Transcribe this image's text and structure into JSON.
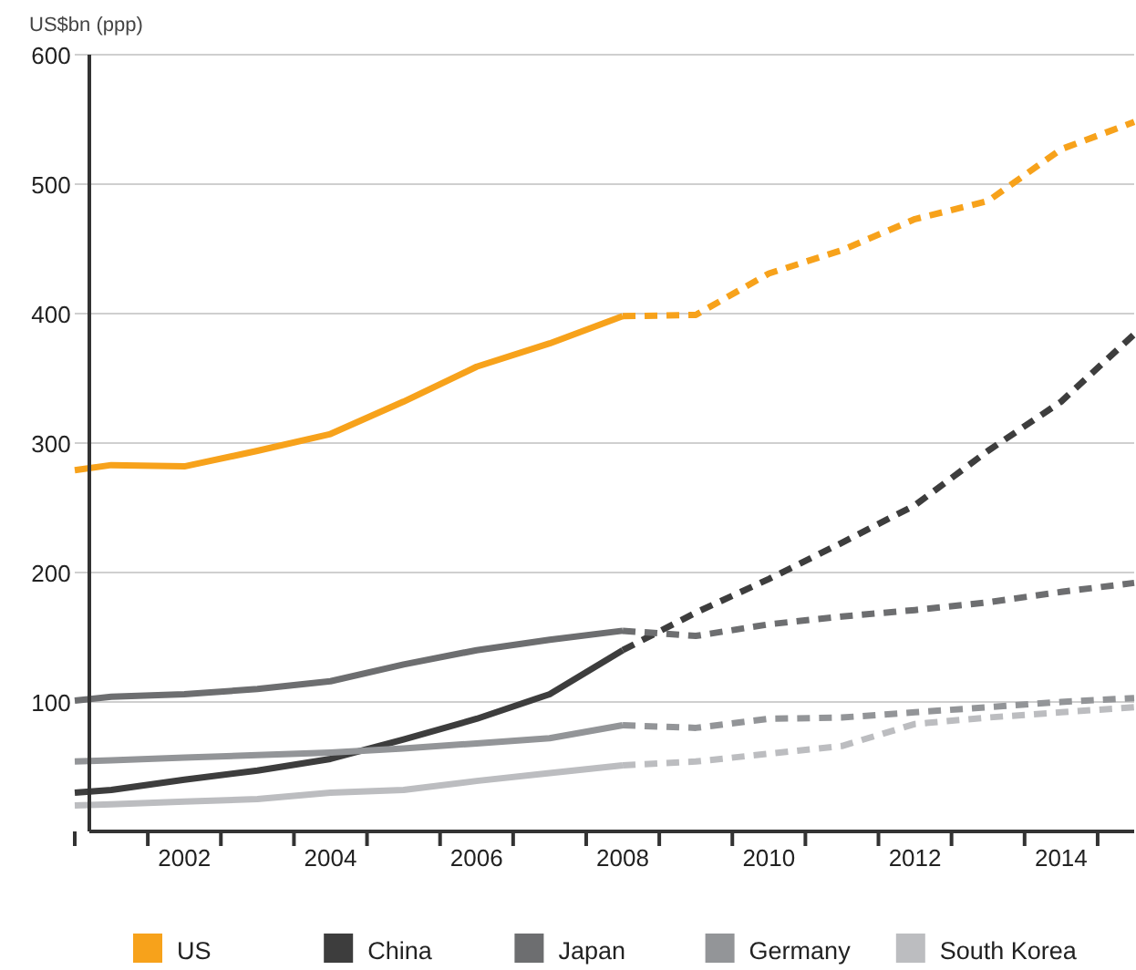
{
  "chart_data": {
    "type": "line",
    "ylabel": "US$bn (ppp)",
    "xlim": [
      2000.5,
      2015
    ],
    "ylim": [
      0,
      600
    ],
    "xticks": [
      {
        "value": 2000.5,
        "label": null
      },
      {
        "value": 2001.5,
        "label": null
      },
      2002,
      {
        "value": 2002.5,
        "label": null
      },
      {
        "value": 2003.5,
        "label": null
      },
      2004,
      {
        "value": 2004.5,
        "label": null
      },
      {
        "value": 2005.5,
        "label": null
      },
      2006,
      {
        "value": 2006.5,
        "label": null
      },
      {
        "value": 2007.5,
        "label": null
      },
      2008,
      {
        "value": 2008.5,
        "label": null
      },
      {
        "value": 2009.5,
        "label": null
      },
      2010,
      {
        "value": 2010.5,
        "label": null
      },
      {
        "value": 2011.5,
        "label": null
      },
      2012,
      {
        "value": 2012.5,
        "label": null
      },
      {
        "value": 2013.5,
        "label": null
      },
      2014,
      {
        "value": 2014.5,
        "label": null
      }
    ],
    "yticks": [
      {
        "value": 0,
        "label": null
      },
      100,
      200,
      300,
      400,
      500,
      600
    ],
    "grid": "y",
    "legend": "bottom",
    "series": [
      {
        "name": "US",
        "color": "#f7a21b",
        "line_style": "solid",
        "x": [
          2000.5,
          2001,
          2002,
          2003,
          2004,
          2005,
          2006,
          2007,
          2008
        ],
        "values": [
          279,
          283,
          282,
          294,
          307,
          332,
          359,
          377,
          398
        ]
      },
      {
        "color": "#f7a21b",
        "line_style": "dashed",
        "x": [
          2008,
          2009,
          2010,
          2011,
          2012,
          2013,
          2014,
          2015
        ],
        "values": [
          398,
          399,
          431,
          449,
          473,
          487,
          527,
          548
        ]
      },
      {
        "name": "China",
        "color": "#3d3d3d",
        "line_style": "solid",
        "x": [
          2000.5,
          2001,
          2002,
          2003,
          2004,
          2005,
          2006,
          2007,
          2008
        ],
        "values": [
          30,
          32,
          40,
          47,
          56,
          71,
          87,
          106,
          140
        ]
      },
      {
        "color": "#3d3d3d",
        "line_style": "dashed",
        "x": [
          2008,
          2009,
          2010,
          2011,
          2012,
          2013,
          2014,
          2015
        ],
        "values": [
          140,
          169,
          195,
          223,
          252,
          294,
          332,
          384
        ]
      },
      {
        "name": "Japan",
        "color": "#6d6e70",
        "line_style": "solid",
        "x": [
          2000.5,
          2001,
          2002,
          2003,
          2004,
          2005,
          2006,
          2007,
          2008
        ],
        "values": [
          101,
          104,
          106,
          110,
          116,
          129,
          140,
          148,
          155
        ]
      },
      {
        "color": "#6d6e70",
        "line_style": "dashed",
        "x": [
          2008,
          2009,
          2010,
          2011,
          2012,
          2013,
          2014,
          2015
        ],
        "values": [
          155,
          151,
          160,
          166,
          171,
          177,
          185,
          192
        ]
      },
      {
        "name": "Germany",
        "color": "#939598",
        "line_style": "solid",
        "x": [
          2000.5,
          2001,
          2002,
          2003,
          2004,
          2005,
          2006,
          2007,
          2008
        ],
        "values": [
          54,
          55,
          57,
          59,
          61,
          64,
          68,
          72,
          82
        ]
      },
      {
        "color": "#939598",
        "line_style": "dashed",
        "x": [
          2008,
          2009,
          2010,
          2011,
          2012,
          2013,
          2014,
          2015
        ],
        "values": [
          82,
          80,
          87,
          88,
          92,
          96,
          100,
          103
        ]
      },
      {
        "name": "South Korea",
        "color": "#bcbdc0",
        "line_style": "solid",
        "x": [
          2000.5,
          2001,
          2002,
          2003,
          2004,
          2005,
          2006,
          2007,
          2008
        ],
        "values": [
          20,
          21,
          23,
          25,
          30,
          32,
          39,
          45,
          51
        ]
      },
      {
        "color": "#bcbdc0",
        "line_style": "dashed",
        "x": [
          2008,
          2009,
          2010,
          2011,
          2012,
          2013,
          2014,
          2015
        ],
        "values": [
          51,
          54,
          60,
          66,
          83,
          88,
          92,
          96
        ]
      }
    ]
  }
}
